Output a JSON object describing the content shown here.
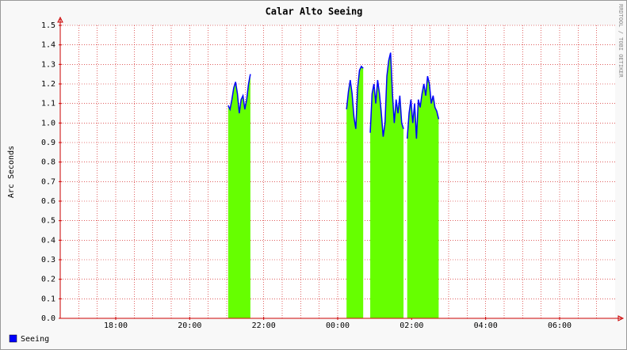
{
  "chart_data": {
    "type": "area",
    "title": "Calar Alto Seeing",
    "y_label": "Arc Seconds",
    "watermark": "RRDTOOL / TOBI OETIKER",
    "xlim": [
      16.5,
      31.5
    ],
    "xticks": [
      {
        "value": 18,
        "label": "18:00"
      },
      {
        "value": 20,
        "label": "20:00"
      },
      {
        "value": 22,
        "label": "22:00"
      },
      {
        "value": 24,
        "label": "00:00"
      },
      {
        "value": 26,
        "label": "02:00"
      },
      {
        "value": 28,
        "label": "04:00"
      },
      {
        "value": 30,
        "label": "06:00"
      }
    ],
    "xminorticks": [
      17,
      17.5,
      18,
      18.5,
      19,
      19.5,
      20,
      20.5,
      21,
      21.5,
      22,
      22.5,
      23,
      23.5,
      24,
      24.5,
      25,
      25.5,
      26,
      26.5,
      27,
      27.5,
      28,
      28.5,
      29,
      29.5,
      30,
      30.5,
      31
    ],
    "ylim": [
      0,
      1.5
    ],
    "yticks": [
      {
        "value": 0,
        "label": "0.0"
      },
      0.1,
      0.2,
      0.3,
      0.4,
      0.5,
      0.6,
      0.7,
      0.8,
      0.9,
      {
        "value": 1,
        "label": "1.0"
      },
      1.1,
      1.2,
      1.3,
      1.4,
      1.5
    ],
    "grid": true,
    "grid_color": "#cc0000",
    "x": [
      21.04,
      21.09,
      21.14,
      21.19,
      21.24,
      21.29,
      21.34,
      21.39,
      21.44,
      21.49,
      21.54,
      21.59,
      21.64,
      22.0,
      24.24,
      24.29,
      24.34,
      24.39,
      24.44,
      24.49,
      24.54,
      24.59,
      24.64,
      24.69,
      24.8,
      24.88,
      24.93,
      24.98,
      25.03,
      25.08,
      25.13,
      25.18,
      25.23,
      25.28,
      25.33,
      25.38,
      25.43,
      25.48,
      25.53,
      25.58,
      25.63,
      25.68,
      25.73,
      25.78,
      25.83,
      25.88,
      25.93,
      25.98,
      26.03,
      26.08,
      26.13,
      26.18,
      26.23,
      26.28,
      26.33,
      26.38,
      26.43,
      26.48,
      26.53,
      26.58,
      26.63,
      26.68,
      26.73
    ],
    "series": [
      {
        "name": "Seeing",
        "color": "#0000ff",
        "area_color": "#66ff00",
        "values": [
          1.09,
          1.07,
          1.12,
          1.18,
          1.21,
          1.15,
          1.05,
          1.12,
          1.14,
          1.07,
          1.12,
          1.2,
          1.25,
          null,
          1.07,
          1.16,
          1.22,
          1.15,
          1.03,
          0.97,
          1.18,
          1.27,
          1.29,
          1.28,
          null,
          0.95,
          1.15,
          1.2,
          1.1,
          1.22,
          1.15,
          1.05,
          0.93,
          1.0,
          1.24,
          1.32,
          1.36,
          1.15,
          1.0,
          1.12,
          1.05,
          1.14,
          1.0,
          0.97,
          null,
          0.92,
          1.05,
          1.12,
          1.0,
          1.1,
          0.92,
          1.12,
          1.08,
          1.15,
          1.2,
          1.14,
          1.24,
          1.2,
          1.1,
          1.14,
          1.08,
          1.06,
          1.02
        ]
      }
    ]
  }
}
